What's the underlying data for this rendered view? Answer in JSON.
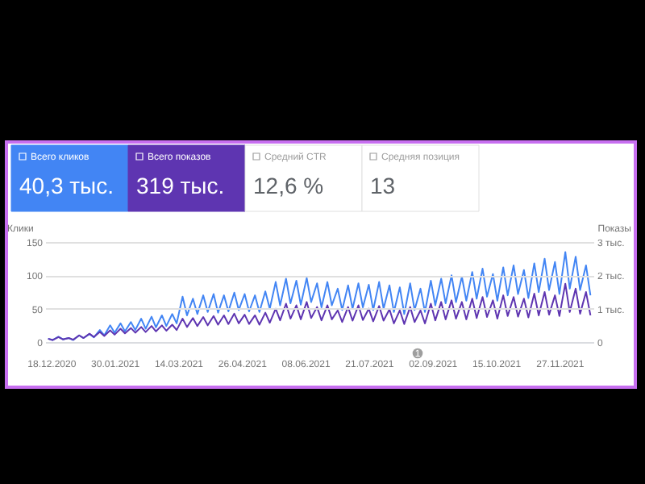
{
  "chart_data": {
    "type": "line",
    "ylabel": "Клики",
    "y2label": "Показы",
    "annotations": [
      "40,3 тыс.",
      "319 тыс.",
      "Средний CTR",
      "12,6 %",
      "Средняя позиция",
      "13",
      "1"
    ],
    "x": [
      "2020-12-16",
      "2020-12-19",
      "2020-12-23",
      "2020-12-26",
      "2020-12-30",
      "2021-01-02",
      "2021-01-06",
      "2021-01-09",
      "2021-01-13",
      "2021-01-16",
      "2021-01-20",
      "2021-01-23",
      "2021-01-27",
      "2021-01-30",
      "2021-02-03",
      "2021-02-06",
      "2021-02-10",
      "2021-02-13",
      "2021-02-17",
      "2021-02-20",
      "2021-02-24",
      "2021-02-27",
      "2021-03-03",
      "2021-03-06",
      "2021-03-10",
      "2021-03-13",
      "2021-03-17",
      "2021-03-20",
      "2021-03-24",
      "2021-03-27",
      "2021-03-31",
      "2021-04-03",
      "2021-04-07",
      "2021-04-10",
      "2021-04-14",
      "2021-04-17",
      "2021-04-21",
      "2021-04-24",
      "2021-04-28",
      "2021-05-01",
      "2021-05-05",
      "2021-05-08",
      "2021-05-12",
      "2021-05-15",
      "2021-05-19",
      "2021-05-22",
      "2021-05-26",
      "2021-05-29",
      "2021-06-02",
      "2021-06-05",
      "2021-06-09",
      "2021-06-12",
      "2021-06-16",
      "2021-06-19",
      "2021-06-23",
      "2021-06-26",
      "2021-06-30",
      "2021-07-03",
      "2021-07-07",
      "2021-07-10",
      "2021-07-14",
      "2021-07-17",
      "2021-07-21",
      "2021-07-24",
      "2021-07-28",
      "2021-07-31",
      "2021-08-04",
      "2021-08-07",
      "2021-08-11",
      "2021-08-14",
      "2021-08-18",
      "2021-08-21",
      "2021-08-25",
      "2021-08-28",
      "2021-09-01",
      "2021-09-04",
      "2021-09-08",
      "2021-09-11",
      "2021-09-15",
      "2021-09-18",
      "2021-09-22",
      "2021-09-25",
      "2021-09-29",
      "2021-10-02",
      "2021-10-06",
      "2021-10-09",
      "2021-10-13",
      "2021-10-16",
      "2021-10-20",
      "2021-10-23",
      "2021-10-27",
      "2021-10-30",
      "2021-11-03",
      "2021-11-06",
      "2021-11-10",
      "2021-11-13",
      "2021-11-17",
      "2021-11-20",
      "2021-11-24",
      "2021-11-27",
      "2021-12-01",
      "2021-12-04",
      "2021-12-08",
      "2021-12-11",
      "2021-12-15",
      "2021-12-18"
    ],
    "series": [
      {
        "name": "Всего кликов",
        "color": "#4285f4",
        "values": [
          5,
          3,
          8,
          4,
          6,
          3,
          10,
          6,
          12,
          7,
          18,
          10,
          25,
          14,
          28,
          16,
          30,
          18,
          35,
          20,
          38,
          22,
          40,
          24,
          42,
          28,
          68,
          40,
          65,
          42,
          70,
          45,
          72,
          44,
          70,
          46,
          74,
          48,
          72,
          46,
          70,
          45,
          76,
          50,
          90,
          55,
          95,
          58,
          92,
          56,
          96,
          60,
          88,
          52,
          90,
          55,
          80,
          48,
          85,
          50,
          88,
          52,
          86,
          48,
          90,
          50,
          85,
          45,
          82,
          42,
          88,
          48,
          80,
          45,
          92,
          55,
          95,
          58,
          100,
          60,
          98,
          62,
          105,
          65,
          110,
          68,
          102,
          62,
          112,
          70,
          115,
          72,
          108,
          66,
          118,
          75,
          125,
          78,
          120,
          72,
          135,
          80,
          128,
          78,
          115,
          70
        ]
      },
      {
        "name": "Всего показов",
        "color": "#5e35b1",
        "axis": "y2",
        "values": [
          0.1,
          0.06,
          0.15,
          0.08,
          0.12,
          0.07,
          0.2,
          0.12,
          0.25,
          0.15,
          0.3,
          0.18,
          0.35,
          0.22,
          0.4,
          0.26,
          0.42,
          0.28,
          0.45,
          0.3,
          0.48,
          0.32,
          0.5,
          0.34,
          0.52,
          0.36,
          0.7,
          0.45,
          0.72,
          0.48,
          0.75,
          0.5,
          0.78,
          0.52,
          0.8,
          0.54,
          0.85,
          0.56,
          0.82,
          0.54,
          0.8,
          0.52,
          0.88,
          0.58,
          1.0,
          0.65,
          1.15,
          0.7,
          1.1,
          0.68,
          1.2,
          0.72,
          1.05,
          0.65,
          1.1,
          0.68,
          0.95,
          0.6,
          1.05,
          0.64,
          1.1,
          0.66,
          1.0,
          0.62,
          1.08,
          0.64,
          0.98,
          0.56,
          0.95,
          0.54,
          1.05,
          0.6,
          0.95,
          0.56,
          1.15,
          0.65,
          1.2,
          0.68,
          1.25,
          0.7,
          1.2,
          0.68,
          1.3,
          0.72,
          1.35,
          0.75,
          1.25,
          0.7,
          1.4,
          0.78,
          1.35,
          0.76,
          1.3,
          0.74,
          1.45,
          0.8,
          1.5,
          0.82,
          1.4,
          0.78,
          1.75,
          0.9,
          1.6,
          0.85,
          1.5,
          0.8
        ]
      }
    ],
    "xlim": [
      "2020-12-14",
      "2021-12-20"
    ],
    "xticks": [
      {
        "value": "2020-12-18",
        "label": "18.12.2020"
      },
      {
        "value": "2021-01-30",
        "label": "30.01.2021"
      },
      {
        "value": "2021-03-14",
        "label": "14.03.2021"
      },
      {
        "value": "2021-04-26",
        "label": "26.04.2021"
      },
      {
        "value": "2021-06-08",
        "label": "08.06.2021"
      },
      {
        "value": "2021-07-21",
        "label": "21.07.2021"
      },
      {
        "value": "2021-09-02",
        "label": "02.09.2021"
      },
      {
        "value": "2021-10-15",
        "label": "15.10.2021"
      },
      {
        "value": "2021-11-27",
        "label": "27.11.2021"
      }
    ],
    "ylim": [
      0,
      150
    ],
    "yticks": [
      0,
      50,
      100,
      150
    ],
    "y2lim": [
      0,
      3
    ],
    "y2ticks": [
      0,
      {
        "value": 1,
        "label": "1 тыс."
      },
      {
        "value": 2,
        "label": "2 тыс."
      },
      {
        "value": 3,
        "label": "3 тыс."
      }
    ],
    "grid": "y",
    "legend": "top left",
    "line_style": "solid",
    "marker": "none"
  }
}
